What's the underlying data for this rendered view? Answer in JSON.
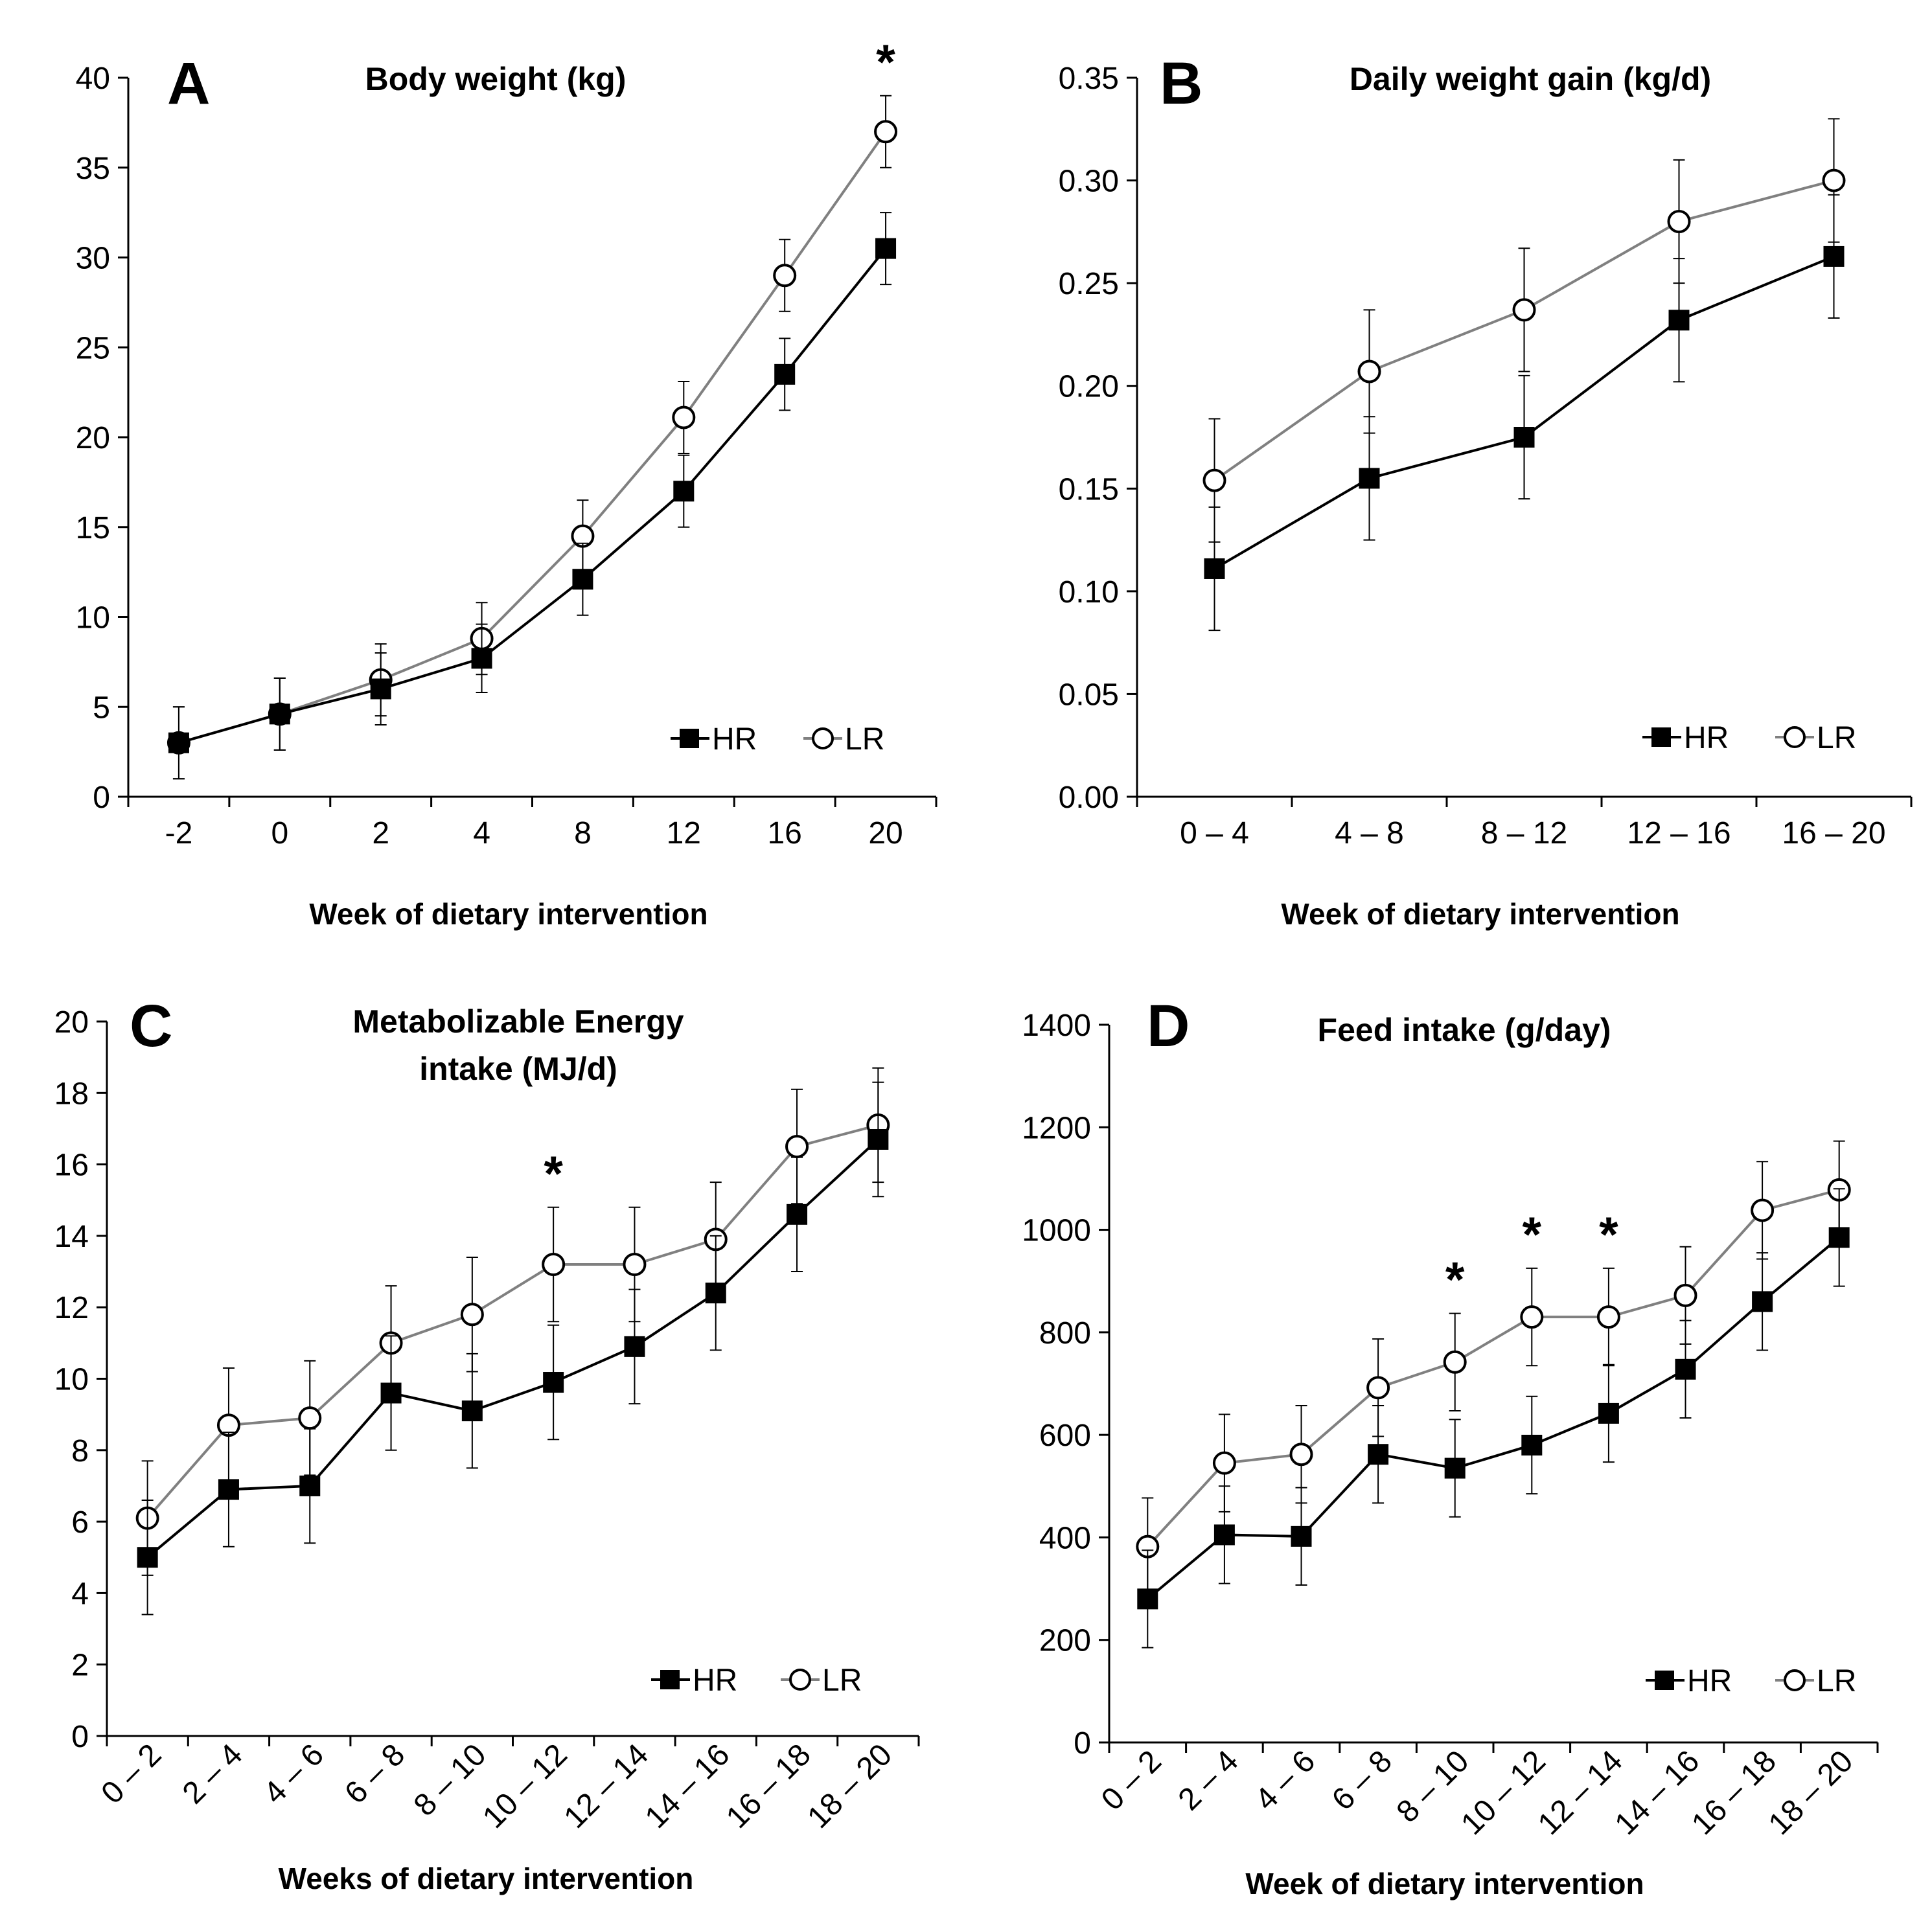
{
  "chart_data": [
    {
      "panel": "A",
      "type": "line",
      "title": [
        "Body weight (kg)"
      ],
      "xlabel": "Week of dietary intervention",
      "ylabel": "",
      "x_tick_rotation": 0,
      "ylim": [
        0,
        40
      ],
      "y_ticks": [
        "0",
        "5",
        "10",
        "15",
        "20",
        "25",
        "30",
        "35",
        "40"
      ],
      "categories": [
        "-2",
        "0",
        "2",
        "4",
        "8",
        "12",
        "16",
        "20"
      ],
      "series": [
        {
          "name": "HR",
          "marker": "filled-square",
          "color": "#000000",
          "values": [
            3.0,
            4.6,
            6.0,
            7.7,
            12.1,
            17.0,
            23.5,
            30.5
          ],
          "errors": [
            2.0,
            2.0,
            2.0,
            1.9,
            2.0,
            2.0,
            2.0,
            2.0
          ]
        },
        {
          "name": "LR",
          "marker": "open-circle",
          "color": "#808080",
          "values": [
            3.0,
            4.6,
            6.5,
            8.8,
            14.5,
            21.1,
            29.0,
            37.0
          ],
          "errors": [
            2.0,
            2.0,
            2.0,
            2.0,
            2.0,
            2.0,
            2.0,
            2.0
          ]
        }
      ],
      "significance_marks": [
        {
          "category": "20",
          "label": "*"
        }
      ],
      "legend": {
        "position": "bottom-right",
        "entries": [
          "HR",
          "LR"
        ]
      }
    },
    {
      "panel": "B",
      "type": "line",
      "title": [
        "Daily weight gain (kg/d)"
      ],
      "xlabel": "Week of dietary intervention",
      "ylabel": "",
      "x_tick_rotation": 0,
      "ylim": [
        0,
        0.35
      ],
      "y_ticks": [
        "0.00",
        "0.05",
        "0.10",
        "0.15",
        "0.20",
        "0.25",
        "0.30",
        "0.35"
      ],
      "categories": [
        "0 – 4",
        "4 – 8",
        "8 – 12",
        "12 – 16",
        "16 – 20"
      ],
      "series": [
        {
          "name": "HR",
          "marker": "filled-square",
          "color": "#000000",
          "values": [
            0.111,
            0.155,
            0.175,
            0.232,
            0.263
          ],
          "errors": [
            0.03,
            0.03,
            0.03,
            0.03,
            0.03
          ]
        },
        {
          "name": "LR",
          "marker": "open-circle",
          "color": "#808080",
          "values": [
            0.154,
            0.207,
            0.237,
            0.28,
            0.3
          ],
          "errors": [
            0.03,
            0.03,
            0.03,
            0.03,
            0.03
          ]
        }
      ],
      "significance_marks": [],
      "legend": {
        "position": "bottom-right",
        "entries": [
          "HR",
          "LR"
        ]
      }
    },
    {
      "panel": "C",
      "type": "line",
      "title": [
        "Metabolizable Energy",
        "intake (MJ/d)"
      ],
      "xlabel": "Weeks of dietary intervention",
      "ylabel": "",
      "x_tick_rotation": -45,
      "ylim": [
        0,
        20
      ],
      "y_ticks": [
        "0",
        "2",
        "4",
        "6",
        "8",
        "10",
        "12",
        "14",
        "16",
        "18",
        "20"
      ],
      "categories": [
        "0 – 2",
        "2 – 4",
        "4 – 6",
        "6 – 8",
        "8 – 10",
        "10 – 12",
        "12 – 14",
        "14 – 16",
        "16 – 18",
        "18 – 20"
      ],
      "series": [
        {
          "name": "HR",
          "marker": "filled-square",
          "color": "#000000",
          "values": [
            5.0,
            6.9,
            7.0,
            9.6,
            9.1,
            9.9,
            10.9,
            12.4,
            14.6,
            16.7
          ],
          "errors": [
            1.6,
            1.6,
            1.6,
            1.6,
            1.6,
            1.6,
            1.6,
            1.6,
            1.6,
            1.6
          ]
        },
        {
          "name": "LR",
          "marker": "open-circle",
          "color": "#808080",
          "values": [
            6.1,
            8.7,
            8.9,
            11.0,
            11.8,
            13.2,
            13.2,
            13.9,
            16.5,
            17.1
          ],
          "errors": [
            1.6,
            1.6,
            1.6,
            1.6,
            1.6,
            1.6,
            1.6,
            1.6,
            1.6,
            1.6
          ]
        }
      ],
      "significance_marks": [
        {
          "category": "10 – 12",
          "label": "*"
        }
      ],
      "legend": {
        "position": "bottom-right",
        "entries": [
          "HR",
          "LR"
        ]
      }
    },
    {
      "panel": "D",
      "type": "line",
      "title": [
        "Feed intake (g/day)"
      ],
      "xlabel": "Week of dietary intervention",
      "ylabel": "",
      "x_tick_rotation": -45,
      "ylim": [
        0,
        1400
      ],
      "y_ticks": [
        "0",
        "200",
        "400",
        "600",
        "800",
        "1000",
        "1200",
        "1400"
      ],
      "categories": [
        "0 – 2",
        "2 – 4",
        "4 – 6",
        "6 – 8",
        "8 – 10",
        "10 – 12",
        "12 – 14",
        "14 – 16",
        "16 – 18",
        "18 – 20"
      ],
      "series": [
        {
          "name": "HR",
          "marker": "filled-square",
          "color": "#000000",
          "values": [
            280,
            405,
            402,
            562,
            535,
            580,
            642,
            728,
            860,
            985
          ],
          "errors": [
            95,
            95,
            95,
            95,
            95,
            95,
            95,
            95,
            95,
            95
          ]
        },
        {
          "name": "LR",
          "marker": "open-circle",
          "color": "#808080",
          "values": [
            382,
            545,
            562,
            692,
            742,
            830,
            830,
            872,
            1038,
            1078
          ],
          "errors": [
            95,
            95,
            95,
            95,
            95,
            95,
            95,
            95,
            95,
            95
          ]
        }
      ],
      "significance_marks": [
        {
          "category": "8 – 10",
          "label": "*"
        },
        {
          "category": "10 – 12",
          "label": "*"
        },
        {
          "category": "12 – 14",
          "label": "*"
        }
      ],
      "legend": {
        "position": "bottom-right",
        "entries": [
          "HR",
          "LR"
        ]
      }
    }
  ]
}
